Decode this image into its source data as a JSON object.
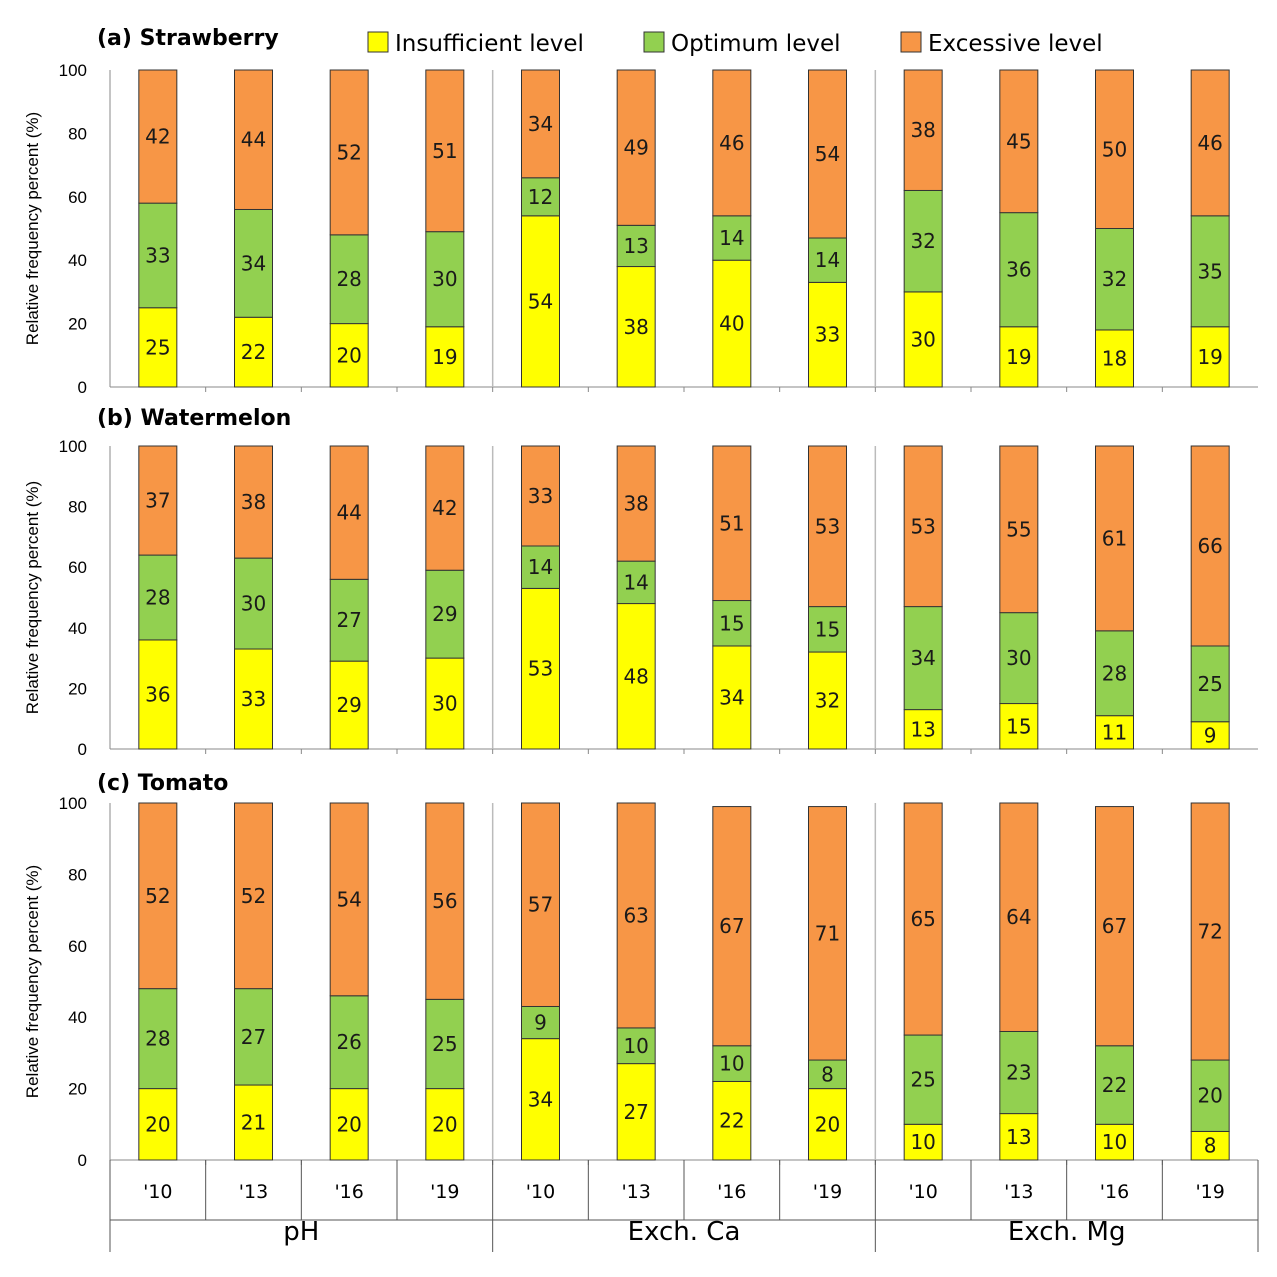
{
  "chart_data": {
    "type": "bar",
    "stacked": true,
    "legend": {
      "placement": "top",
      "entries": [
        {
          "key": "insufficient",
          "label": "Insufficient level",
          "color": "#ffff00"
        },
        {
          "key": "optimum",
          "label": "Optimum level",
          "color": "#92d050"
        },
        {
          "key": "excessive",
          "label": "Excessive level",
          "color": "#f79646"
        }
      ]
    },
    "ylabel": "Relative frequency percent  (%)",
    "ylim": [
      0,
      100
    ],
    "yticks": [
      0,
      20,
      40,
      60,
      80,
      100
    ],
    "groups": [
      "pH",
      "Exch. Ca",
      "Exch. Mg"
    ],
    "years": [
      "'10",
      "'13",
      "'16",
      "'19"
    ],
    "panels": [
      {
        "title": "(a) Strawberry",
        "insufficient": [
          25,
          22,
          20,
          19,
          54,
          38,
          40,
          33,
          30,
          19,
          18,
          19
        ],
        "optimum": [
          33,
          34,
          28,
          30,
          12,
          13,
          14,
          14,
          32,
          36,
          32,
          35
        ],
        "excessive": [
          42,
          44,
          52,
          51,
          34,
          49,
          46,
          54,
          38,
          45,
          50,
          46
        ]
      },
      {
        "title": "(b) Watermelon",
        "insufficient": [
          36,
          33,
          29,
          30,
          53,
          48,
          34,
          32,
          13,
          15,
          11,
          9
        ],
        "optimum": [
          28,
          30,
          27,
          29,
          14,
          14,
          15,
          15,
          34,
          30,
          28,
          25
        ],
        "excessive": [
          37,
          38,
          44,
          42,
          33,
          38,
          51,
          53,
          53,
          55,
          61,
          66
        ]
      },
      {
        "title": "(c) Tomato",
        "insufficient": [
          20,
          21,
          20,
          20,
          34,
          27,
          22,
          20,
          10,
          13,
          10,
          8
        ],
        "optimum": [
          28,
          27,
          26,
          25,
          9,
          10,
          10,
          8,
          25,
          23,
          22,
          20
        ],
        "excessive": [
          52,
          52,
          54,
          56,
          57,
          63,
          67,
          71,
          65,
          64,
          67,
          72
        ]
      }
    ]
  }
}
